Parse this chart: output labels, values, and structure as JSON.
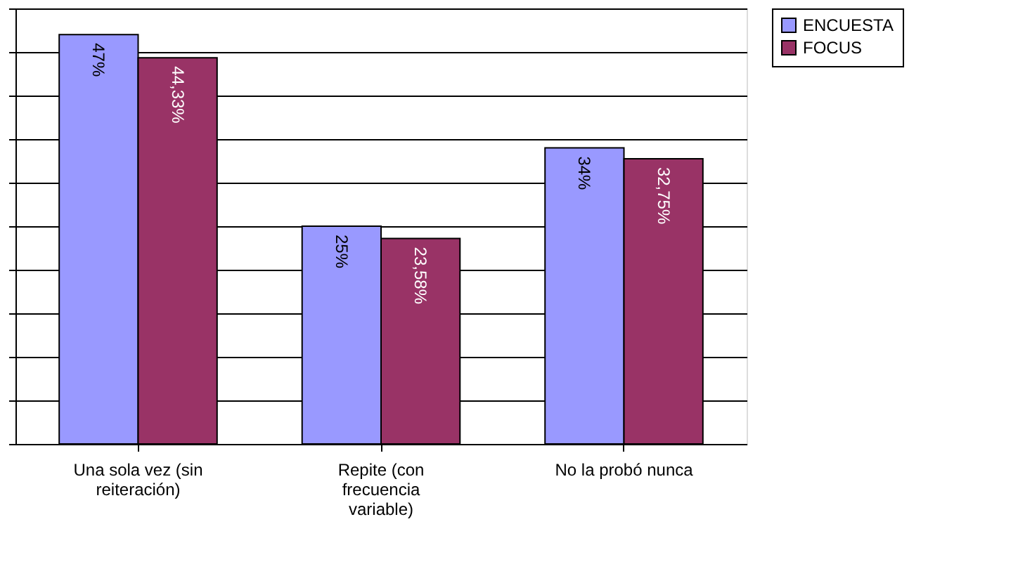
{
  "chart_data": {
    "type": "bar",
    "categories": [
      "Una sola vez (sin reiteración)",
      "Repite  (con frecuencia variable)",
      "No la probó nunca"
    ],
    "series": [
      {
        "name": "ENCUESTA",
        "color": "#9999ff",
        "values": [
          47,
          25,
          34
        ],
        "value_labels": [
          "47%",
          "25%",
          "34%"
        ]
      },
      {
        "name": "FOCUS",
        "color": "#993366",
        "values": [
          44.33,
          23.58,
          32.75
        ],
        "value_labels": [
          "44,33%",
          "23,58%",
          "32,75%"
        ]
      }
    ],
    "ylim": [
      0,
      50
    ],
    "yticks": [
      {
        "value": 0,
        "label": null
      },
      {
        "value": 5,
        "label": null
      },
      {
        "value": 10,
        "label": null
      },
      {
        "value": 15,
        "label": null
      },
      {
        "value": 20,
        "label": null
      },
      {
        "value": 25,
        "label": null
      },
      {
        "value": 30,
        "label": null
      },
      {
        "value": 35,
        "label": null
      },
      {
        "value": 40,
        "label": null
      },
      {
        "value": 45,
        "label": null
      },
      {
        "value": 50,
        "label": null
      }
    ],
    "tick_labels": "x",
    "grid": "y",
    "legend": "right"
  }
}
